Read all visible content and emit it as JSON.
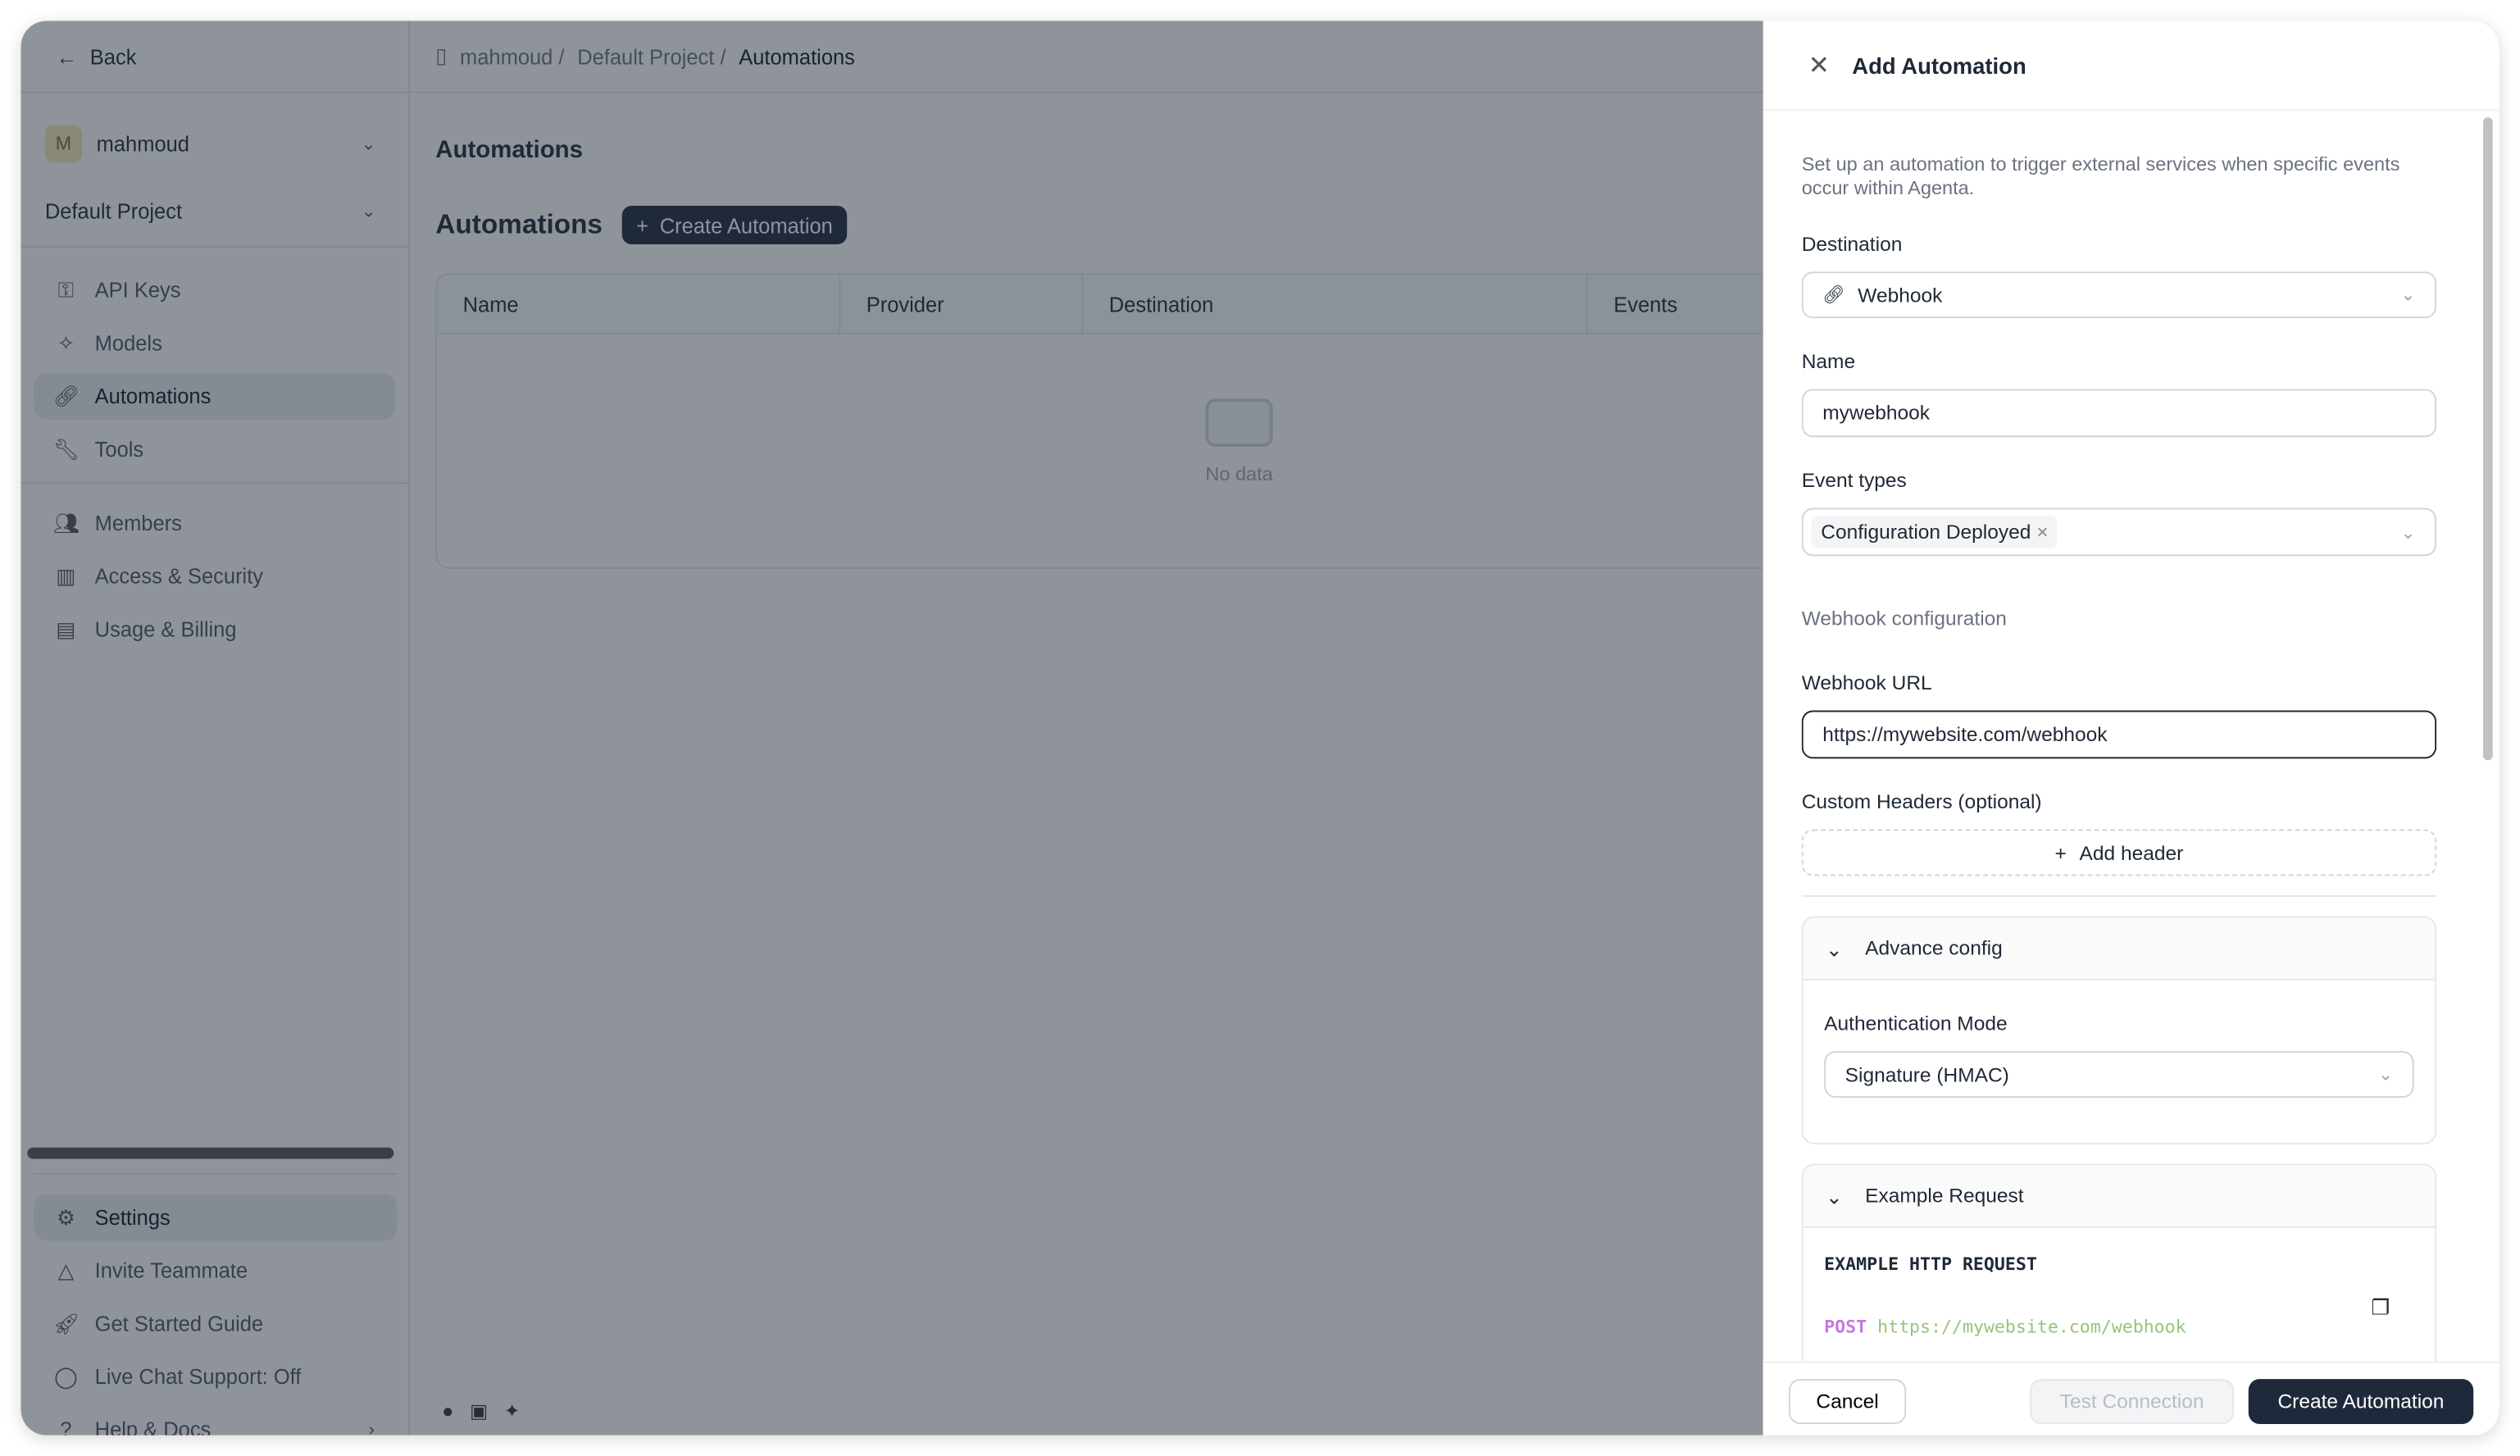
{
  "sidebar": {
    "back": "Back",
    "account": {
      "initial": "M",
      "name": "mahmoud"
    },
    "project": "Default Project",
    "items": [
      {
        "label": "API Keys",
        "icon": "key-icon"
      },
      {
        "label": "Models",
        "icon": "sparkle-icon"
      },
      {
        "label": "Automations",
        "icon": "link-icon",
        "active": true
      },
      {
        "label": "Tools",
        "icon": "wrench-icon"
      }
    ],
    "items2": [
      {
        "label": "Members",
        "icon": "users-icon"
      },
      {
        "label": "Access & Security",
        "icon": "building-icon"
      },
      {
        "label": "Usage & Billing",
        "icon": "receipt-icon"
      }
    ],
    "footer": [
      {
        "label": "Settings",
        "icon": "gear-icon"
      },
      {
        "label": "Invite Teammate",
        "icon": "triangle-icon"
      },
      {
        "label": "Get Started Guide",
        "icon": "rocket-icon"
      },
      {
        "label": "Live Chat Support: Off",
        "icon": "chat-icon"
      },
      {
        "label": "Help & Docs",
        "icon": "help-icon"
      }
    ]
  },
  "breadcrumb": {
    "a": "mahmoud /",
    "b": "Default Project /",
    "c": "Automations"
  },
  "main": {
    "section": "Automations",
    "title": "Automations",
    "create": "Create Automation",
    "columns": [
      "Name",
      "Provider",
      "Destination",
      "Events"
    ],
    "empty": "No data"
  },
  "panel": {
    "title": "Add Automation",
    "description": "Set up an automation to trigger external services when specific events occur within Agenta.",
    "destination_label": "Destination",
    "destination": "Webhook",
    "name_label": "Name",
    "name": "mywebhook",
    "event_label": "Event types",
    "event_tag": "Configuration Deployed",
    "webhook_section": "Webhook configuration",
    "url_label": "Webhook URL",
    "url": "https://mywebsite.com/webhook",
    "headers_label": "Custom Headers (optional)",
    "add_header": "Add header",
    "advance": "Advance config",
    "auth_label": "Authentication Mode",
    "auth": "Signature (HMAC)",
    "example": "Example Request",
    "example_title": "EXAMPLE HTTP REQUEST",
    "method": "POST",
    "example_url": "https://mywebsite.com/webhook",
    "cancel": "Cancel",
    "test": "Test Connection",
    "submit": "Create Automation"
  },
  "colors": {
    "primary": "#1e293b",
    "post": "#c678dd",
    "url": "#98c379"
  }
}
